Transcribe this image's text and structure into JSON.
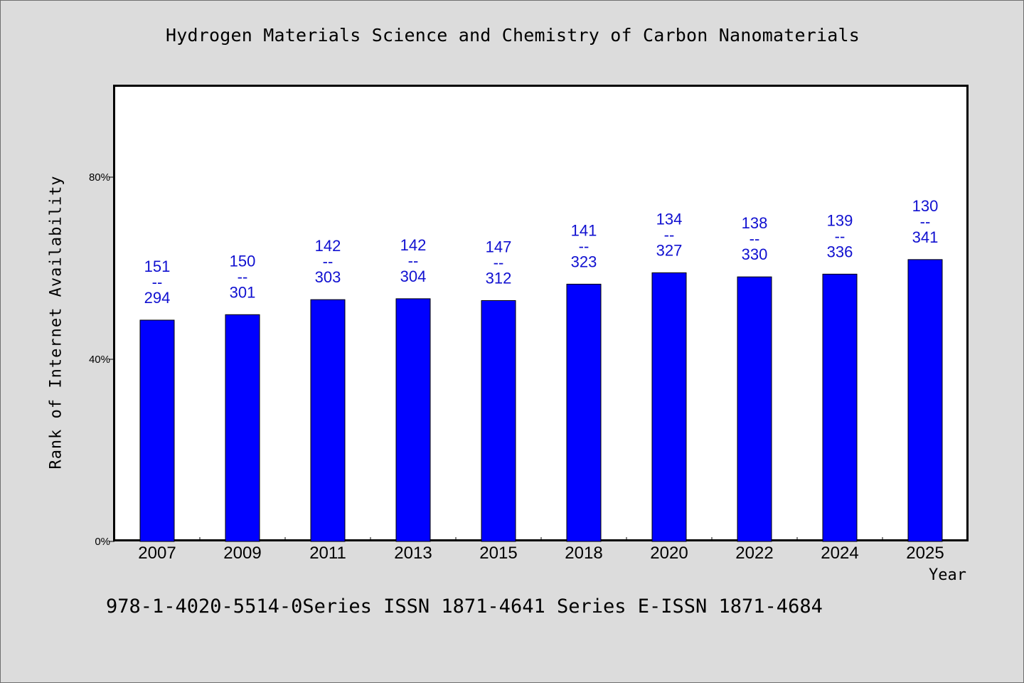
{
  "chart_data": {
    "type": "bar",
    "title": "Hydrogen Materials Science and Chemistry of Carbon Nanomaterials",
    "xlabel": "Year",
    "ylabel": "Rank of Internet Availability",
    "ylim": [
      0,
      100
    ],
    "yticks": [
      {
        "value": 0,
        "label": "0%"
      },
      {
        "value": 40,
        "label": "40%"
      },
      {
        "value": 80,
        "label": "80%"
      }
    ],
    "categories": [
      "2007",
      "2009",
      "2011",
      "2013",
      "2015",
      "2018",
      "2020",
      "2022",
      "2024",
      "2025"
    ],
    "values": [
      48.6,
      49.8,
      53.1,
      53.3,
      52.9,
      56.5,
      59.0,
      58.1,
      58.7,
      61.9
    ],
    "data_labels": [
      {
        "rank": "151",
        "sep": "--",
        "total": "294"
      },
      {
        "rank": "150",
        "sep": "--",
        "total": "301"
      },
      {
        "rank": "142",
        "sep": "--",
        "total": "303"
      },
      {
        "rank": "142",
        "sep": "--",
        "total": "304"
      },
      {
        "rank": "147",
        "sep": "--",
        "total": "312"
      },
      {
        "rank": "141",
        "sep": "--",
        "total": "323"
      },
      {
        "rank": "134",
        "sep": "--",
        "total": "327"
      },
      {
        "rank": "138",
        "sep": "--",
        "total": "330"
      },
      {
        "rank": "139",
        "sep": "--",
        "total": "336"
      },
      {
        "rank": "130",
        "sep": "--",
        "total": "341"
      }
    ],
    "grid": false,
    "colors": {
      "bar": "#0000ff",
      "bar_border": "#000000",
      "data_label": "#1010d0",
      "background": "#dcdcdc",
      "plot_background": "#ffffff"
    }
  },
  "footnote": "978-1-4020-5514-0Series ISSN 1871-4641 Series E-ISSN 1871-4684"
}
